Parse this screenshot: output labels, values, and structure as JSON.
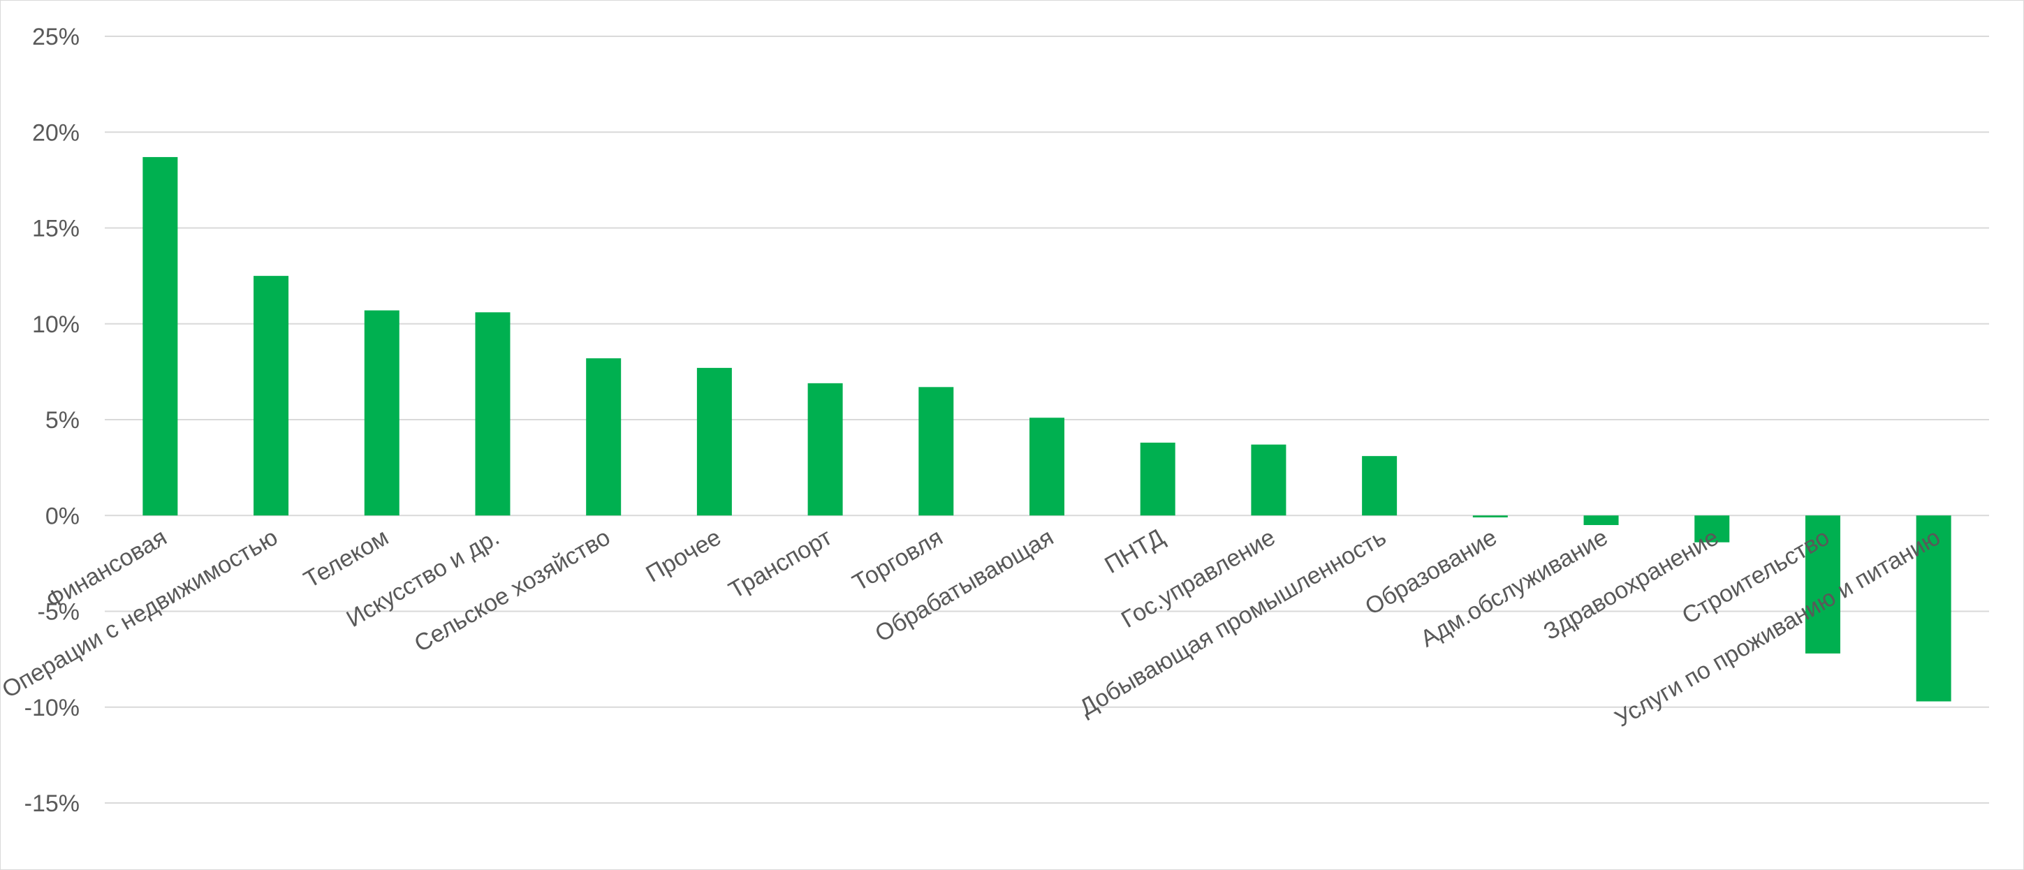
{
  "chart_data": {
    "type": "bar",
    "title": "",
    "xlabel": "",
    "ylabel": "",
    "ylim": [
      -15,
      25
    ],
    "yticks": [
      "-15%",
      "-10%",
      "-5%",
      "0%",
      "5%",
      "10%",
      "15%",
      "20%",
      "25%"
    ],
    "ytick_values": [
      -15,
      -10,
      -5,
      0,
      5,
      10,
      15,
      20,
      25
    ],
    "grid": true,
    "legend": "none",
    "bar_color": "#00b050",
    "categories": [
      "Финансовая",
      "Операции с недвижимостью",
      "Телеком",
      "Искусство и др.",
      "Сельское хозяйство",
      "Прочее",
      "Транспорт",
      "Торговля",
      "Обрабатывающая",
      "ПНТД",
      "Гос.управление",
      "Добывающая промышленность",
      "Образование",
      "Адм.обслуживание",
      "Здравоохранение",
      "Строительство",
      "Услуги по проживанию и питанию"
    ],
    "values": [
      18.7,
      12.5,
      10.7,
      10.6,
      8.2,
      7.7,
      6.9,
      6.7,
      5.1,
      3.8,
      3.7,
      3.1,
      -0.1,
      -0.5,
      -1.4,
      -7.2,
      -9.7
    ]
  }
}
